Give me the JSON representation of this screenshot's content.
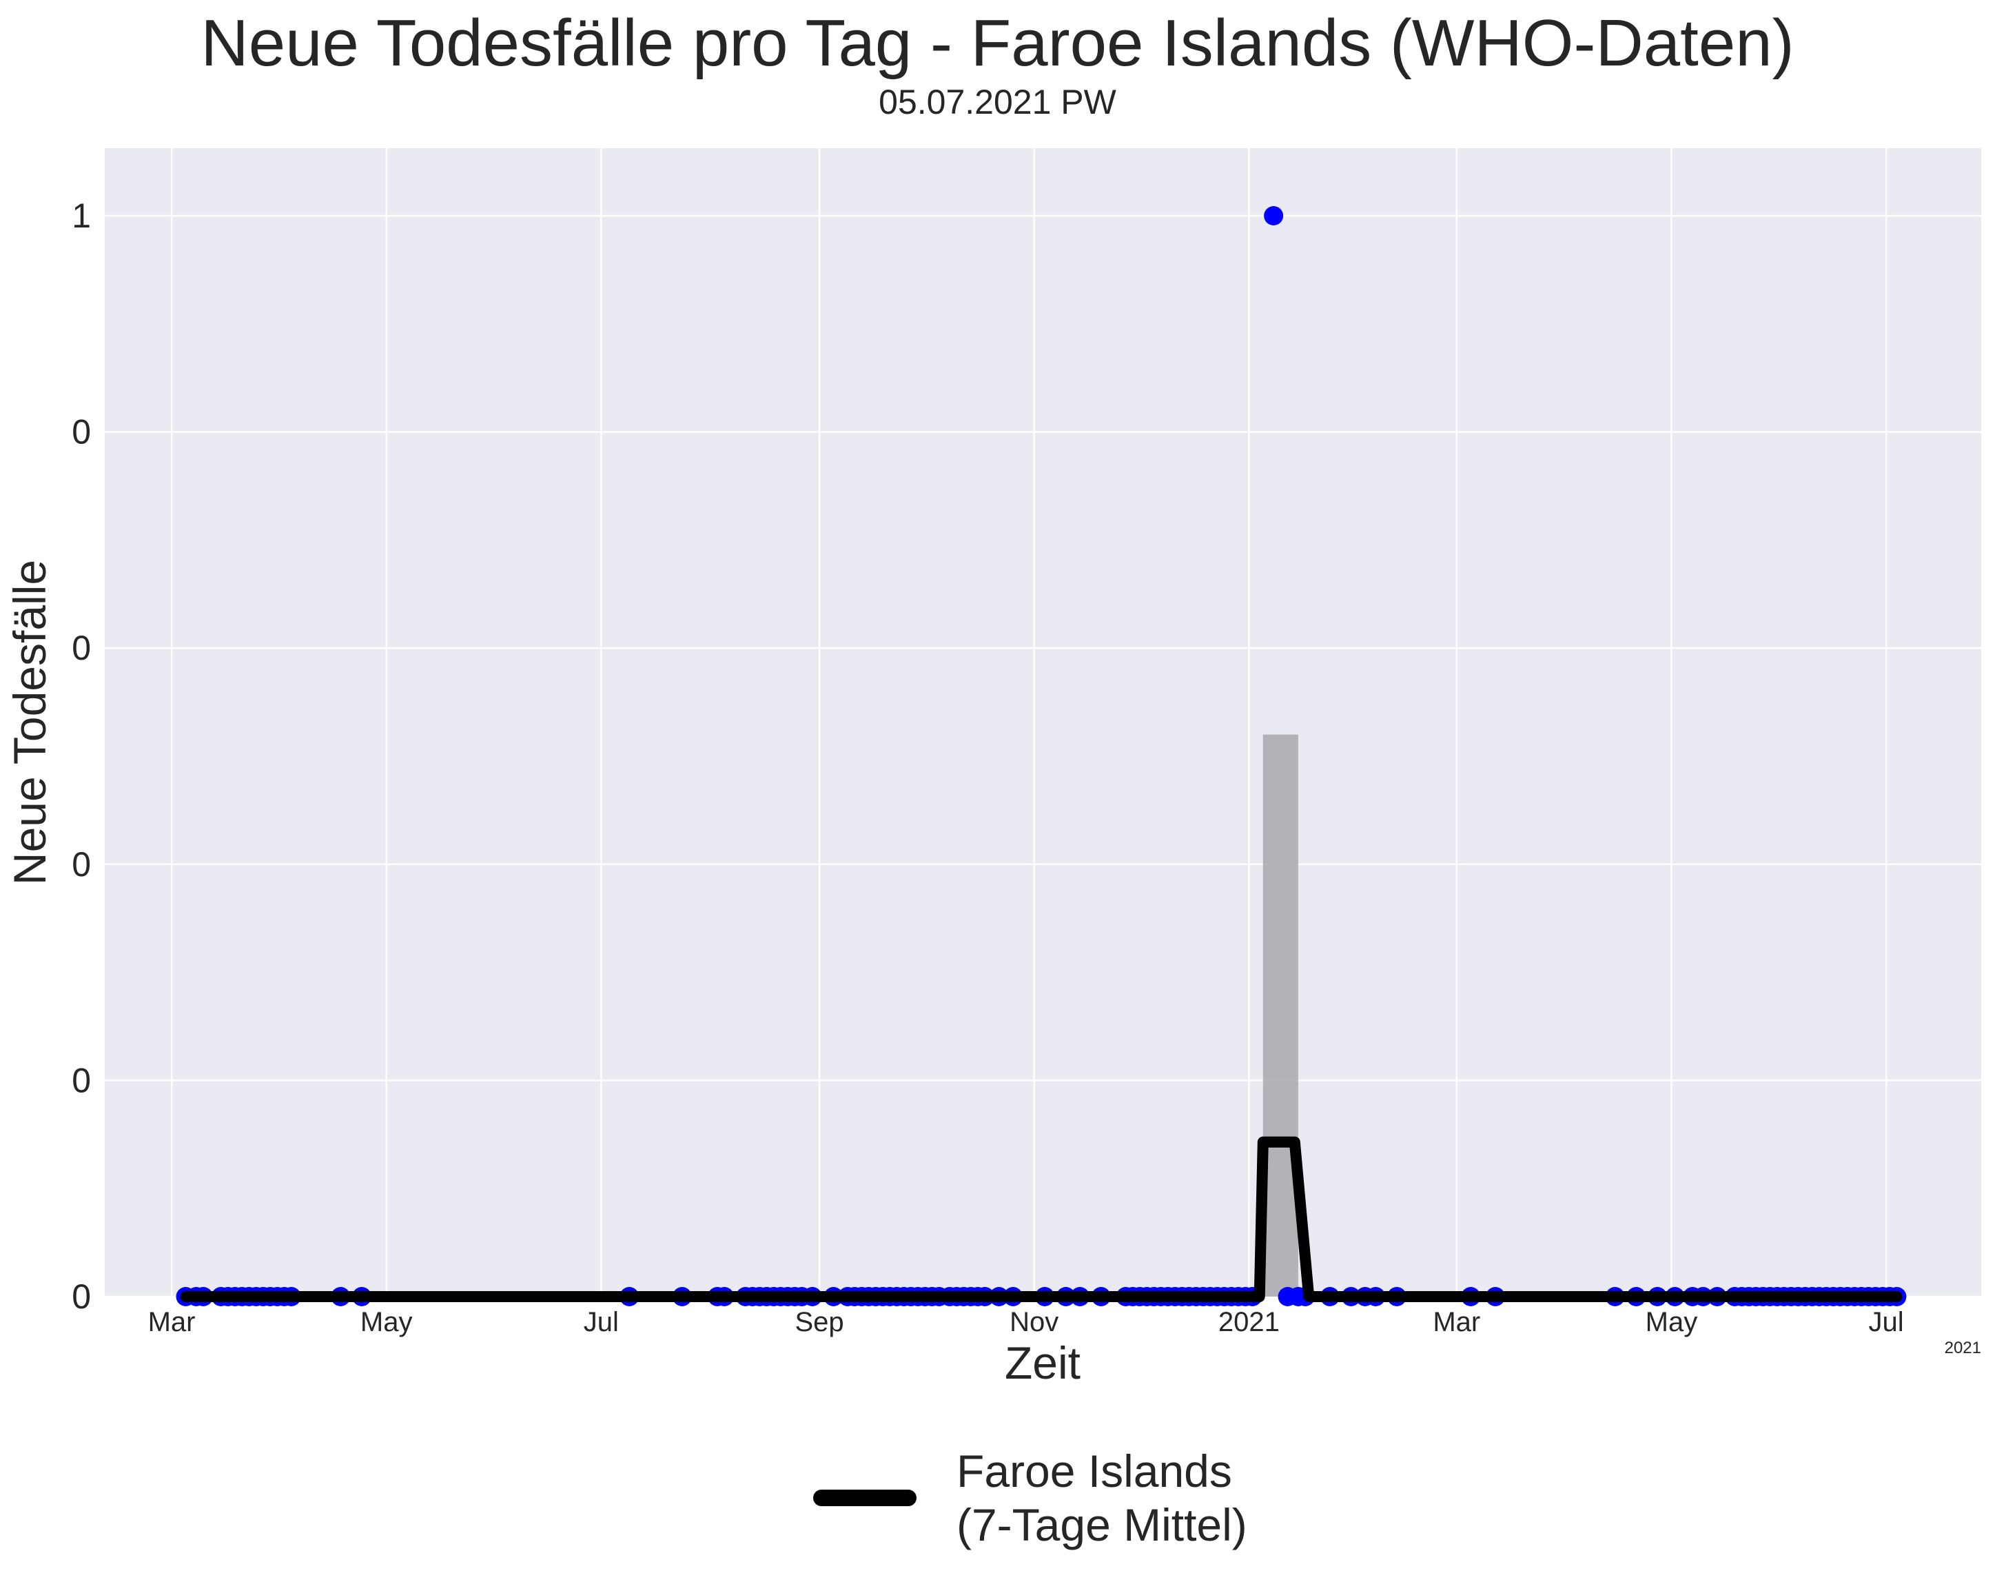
{
  "title": "Neue Todesfälle pro Tag - Faroe Islands (WHO-Daten)",
  "subtitle": "05.07.2021 PW",
  "chart_data": {
    "type": "line",
    "xlabel": "Zeit",
    "ylabel": "Neue Todesfälle",
    "x_offset_label": "2021",
    "x_ticks": [
      {
        "date": "2020-03-01",
        "label": "Mar"
      },
      {
        "date": "2020-05-01",
        "label": "May"
      },
      {
        "date": "2020-07-01",
        "label": "Jul"
      },
      {
        "date": "2020-09-01",
        "label": "Sep"
      },
      {
        "date": "2020-11-01",
        "label": "Nov"
      },
      {
        "date": "2021-01-01",
        "label": "2021"
      },
      {
        "date": "2021-03-01",
        "label": "Mar"
      },
      {
        "date": "2021-05-01",
        "label": "May"
      },
      {
        "date": "2021-07-01",
        "label": "Jul"
      }
    ],
    "y_ticks": [
      {
        "value": 0.0,
        "label": "0"
      },
      {
        "value": 0.2,
        "label": "0"
      },
      {
        "value": 0.4,
        "label": "0"
      },
      {
        "value": 0.6,
        "label": "0"
      },
      {
        "value": 0.8,
        "label": "0"
      },
      {
        "value": 1.0,
        "label": "1"
      }
    ],
    "xlim": [
      "2020-02-11",
      "2021-07-28"
    ],
    "ylim": [
      0,
      1.0625
    ],
    "grid": true,
    "legend_position": "bottom-center",
    "series": [
      {
        "name": "Faroe Islands\n(7-Tage Mittel)",
        "kind": "line",
        "color": "#000000",
        "points": [
          [
            "2020-03-05",
            0
          ],
          [
            "2021-01-04",
            0
          ],
          [
            "2021-01-05",
            0.143
          ],
          [
            "2021-01-14",
            0.143
          ],
          [
            "2021-01-18",
            0
          ],
          [
            "2021-07-04",
            0
          ]
        ]
      },
      {
        "kind": "band",
        "color": "#a9a9ad",
        "points": [
          [
            "2021-01-05",
            0
          ],
          [
            "2021-01-05",
            0.52
          ],
          [
            "2021-01-15",
            0.52
          ],
          [
            "2021-01-15",
            0
          ]
        ]
      },
      {
        "kind": "scatter",
        "color": "#0000ff",
        "points": [
          [
            "2021-01-08",
            1
          ]
        ],
        "zero_points": [
          "2020-03-05",
          "2020-03-08",
          "2020-03-10",
          "2020-03-15",
          "2020-03-17",
          "2020-03-19",
          "2020-03-21",
          "2020-03-23",
          "2020-03-25",
          "2020-03-27",
          "2020-03-29",
          "2020-03-31",
          "2020-04-02",
          "2020-04-04",
          "2020-04-18",
          "2020-04-24",
          "2020-07-09",
          "2020-07-24",
          "2020-08-03",
          "2020-08-05",
          "2020-08-11",
          "2020-08-13",
          "2020-08-15",
          "2020-08-17",
          "2020-08-19",
          "2020-08-21",
          "2020-08-23",
          "2020-08-25",
          "2020-08-27",
          "2020-08-30",
          "2020-09-05",
          "2020-09-09",
          "2020-09-11",
          "2020-09-13",
          "2020-09-15",
          "2020-09-17",
          "2020-09-19",
          "2020-09-21",
          "2020-09-23",
          "2020-09-25",
          "2020-09-27",
          "2020-09-29",
          "2020-10-01",
          "2020-10-03",
          "2020-10-05",
          "2020-10-08",
          "2020-10-10",
          "2020-10-12",
          "2020-10-14",
          "2020-10-16",
          "2020-10-18",
          "2020-10-22",
          "2020-10-26",
          "2020-11-04",
          "2020-11-10",
          "2020-11-14",
          "2020-11-20",
          "2020-11-27",
          "2020-11-29",
          "2020-12-01",
          "2020-12-03",
          "2020-12-05",
          "2020-12-07",
          "2020-12-09",
          "2020-12-11",
          "2020-12-13",
          "2020-12-15",
          "2020-12-17",
          "2020-12-19",
          "2020-12-21",
          "2020-12-23",
          "2020-12-25",
          "2020-12-27",
          "2020-12-29",
          "2020-12-31",
          "2021-01-02",
          "2021-01-12",
          "2021-01-15",
          "2021-01-17",
          "2021-01-24",
          "2021-01-30",
          "2021-02-03",
          "2021-02-06",
          "2021-02-12",
          "2021-03-05",
          "2021-03-12",
          "2021-04-15",
          "2021-04-21",
          "2021-04-27",
          "2021-05-02",
          "2021-05-07",
          "2021-05-10",
          "2021-05-14",
          "2021-05-19",
          "2021-05-21",
          "2021-05-23",
          "2021-05-25",
          "2021-05-27",
          "2021-05-29",
          "2021-05-31",
          "2021-06-02",
          "2021-06-04",
          "2021-06-06",
          "2021-06-08",
          "2021-06-10",
          "2021-06-12",
          "2021-06-14",
          "2021-06-16",
          "2021-06-18",
          "2021-06-20",
          "2021-06-22",
          "2021-06-24",
          "2021-06-26",
          "2021-06-28",
          "2021-06-30",
          "2021-07-02",
          "2021-07-04"
        ]
      }
    ]
  }
}
